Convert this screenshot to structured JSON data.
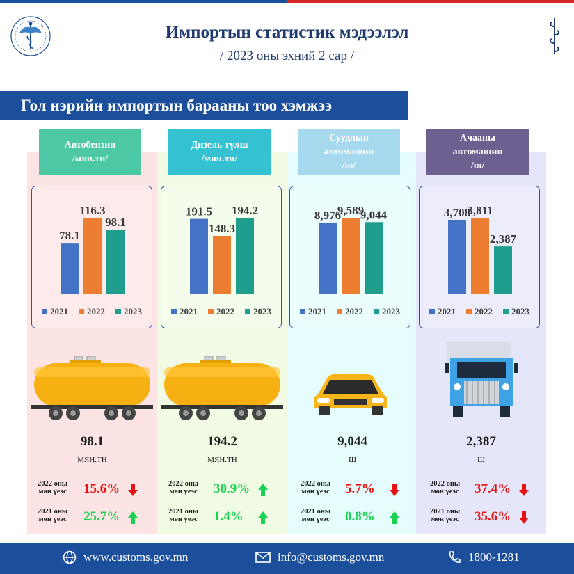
{
  "header": {
    "title": "Импортын статистик мэдээлэл",
    "subtitle": "/ 2023 оны эхний 2 сар /"
  },
  "section_title": "Гол нэрийн импортын барааны тоо хэмжээ",
  "legend_years": [
    "2021",
    "2022",
    "2023"
  ],
  "colors": {
    "y2021": "#4472c4",
    "y2022": "#ed7d31",
    "y2023": "#1f9e8e",
    "red": "#e81010",
    "green": "#1bd152"
  },
  "products": [
    {
      "header": [
        "Автобензин",
        "/мян.тн/"
      ],
      "header_color": "#4cc9a4",
      "bg_color": "#fde4e4",
      "big_value": "98.1",
      "unit": "МЯН.ТН",
      "cmp_2022_label": [
        "2022 оны",
        "мөн үеэс"
      ],
      "cmp_2022_pct": "15.6%",
      "cmp_2022_dir": "down",
      "cmp_2021_label": [
        "2021 оны",
        "мөн үеэс"
      ],
      "cmp_2021_pct": "25.7%",
      "cmp_2021_dir": "up",
      "icon": "tank-car-icon"
    },
    {
      "header": [
        "Дизель түлш",
        "/мян.тн/"
      ],
      "header_color": "#34c2d2",
      "bg_color": "#f1fbe4",
      "big_value": "194.2",
      "unit": "МЯН.ТН",
      "cmp_2022_label": [
        "2022 оны",
        "мөн үеэс"
      ],
      "cmp_2022_pct": "30.9%",
      "cmp_2022_dir": "up",
      "cmp_2021_label": [
        "2021 оны",
        "мөн үеэс"
      ],
      "cmp_2021_pct": "1.4%",
      "cmp_2021_dir": "up",
      "icon": "tank-car-icon"
    },
    {
      "header": [
        "Суудлын",
        "автомашин",
        "/ш/"
      ],
      "header_color": "#a6d8ee",
      "bg_color": "#e5fdfd",
      "big_value": "9,044",
      "unit": "Ш",
      "cmp_2022_label": [
        "2022 оны",
        "мөн үеэс"
      ],
      "cmp_2022_pct": "5.7%",
      "cmp_2022_dir": "down",
      "cmp_2021_label": [
        "2021 оны",
        "мөн үеэс"
      ],
      "cmp_2021_pct": "0.8%",
      "cmp_2021_dir": "up",
      "icon": "car-icon"
    },
    {
      "header": [
        "Ачааны",
        "автомашин",
        "/ш/"
      ],
      "header_color": "#6d5f8f",
      "bg_color": "#e6e6fa",
      "big_value": "2,387",
      "unit": "Ш",
      "cmp_2022_label": [
        "2022 оны",
        "мөн үеэс"
      ],
      "cmp_2022_pct": "37.4%",
      "cmp_2022_dir": "down",
      "cmp_2021_label": [
        "2021 оны",
        "мөн үеэс"
      ],
      "cmp_2021_pct": "35.6%",
      "cmp_2021_dir": "down",
      "icon": "truck-icon"
    }
  ],
  "chart_data": [
    {
      "type": "bar",
      "categories": [
        "2021",
        "2022",
        "2023"
      ],
      "values": [
        78.1,
        116.3,
        98.1
      ],
      "labels": [
        "78.1",
        "116.3",
        "98.1"
      ]
    },
    {
      "type": "bar",
      "categories": [
        "2021",
        "2022",
        "2023"
      ],
      "values": [
        191.5,
        148.3,
        194.2
      ],
      "labels": [
        "191.5",
        "148.3",
        "194.2"
      ]
    },
    {
      "type": "bar",
      "categories": [
        "2021",
        "2022",
        "2023"
      ],
      "values": [
        8976,
        9589,
        9044
      ],
      "labels": [
        "8,976",
        "9,589",
        "9,044"
      ]
    },
    {
      "type": "bar",
      "categories": [
        "2021",
        "2022",
        "2023"
      ],
      "values": [
        3708,
        3811,
        2387
      ],
      "labels": [
        "3,708",
        "3,811",
        "2,387"
      ]
    }
  ],
  "footer": {
    "website": "www.customs.gov.mn",
    "email": "info@customs.gov.mn",
    "phone": "1800-1281"
  }
}
